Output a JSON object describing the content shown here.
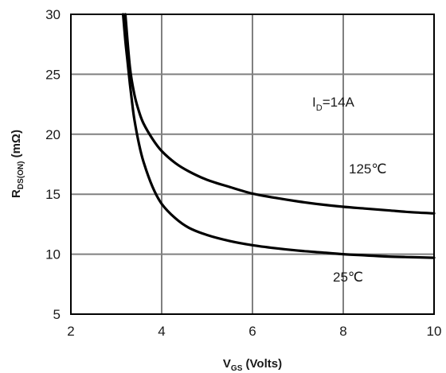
{
  "chart_data": {
    "type": "line",
    "title": "",
    "xlabel": {
      "main": "V",
      "sub": "GS",
      "suffix": " (Volts)"
    },
    "ylabel": {
      "main": "R",
      "sub": "DS(ON)",
      "suffix": " (mΩ)"
    },
    "xlim": [
      2,
      10
    ],
    "ylim": [
      5,
      30
    ],
    "x_ticks": [
      2,
      4,
      6,
      8,
      10
    ],
    "y_ticks": [
      5,
      10,
      15,
      20,
      25,
      30
    ],
    "grid": true,
    "annotations": {
      "id_main": "I",
      "id_sub": "D",
      "id_rest": "=14A"
    },
    "series": [
      {
        "name": "125℃",
        "x": [
          3.2,
          3.3,
          3.4,
          3.5,
          3.6,
          3.8,
          4.0,
          4.3,
          4.6,
          5.0,
          5.5,
          6.0,
          6.5,
          7.0,
          7.5,
          8.0,
          8.5,
          9.0,
          9.5,
          10.0
        ],
        "y": [
          30.0,
          25.6,
          23.3,
          21.9,
          20.9,
          19.6,
          18.6,
          17.6,
          16.9,
          16.2,
          15.6,
          15.05,
          14.7,
          14.4,
          14.15,
          13.95,
          13.8,
          13.65,
          13.5,
          13.4
        ]
      },
      {
        "name": "25℃",
        "x": [
          3.15,
          3.2,
          3.25,
          3.3,
          3.35,
          3.4,
          3.5,
          3.6,
          3.8,
          4.0,
          4.3,
          4.6,
          5.0,
          5.5,
          6.0,
          6.5,
          7.0,
          7.5,
          8.0,
          8.5,
          9.0,
          9.5,
          10.0
        ],
        "y": [
          30.0,
          27.8,
          26.0,
          24.2,
          22.6,
          21.2,
          19.2,
          17.7,
          15.6,
          14.2,
          13.0,
          12.2,
          11.6,
          11.1,
          10.75,
          10.5,
          10.3,
          10.15,
          10.0,
          9.9,
          9.8,
          9.75,
          9.7
        ]
      }
    ]
  }
}
